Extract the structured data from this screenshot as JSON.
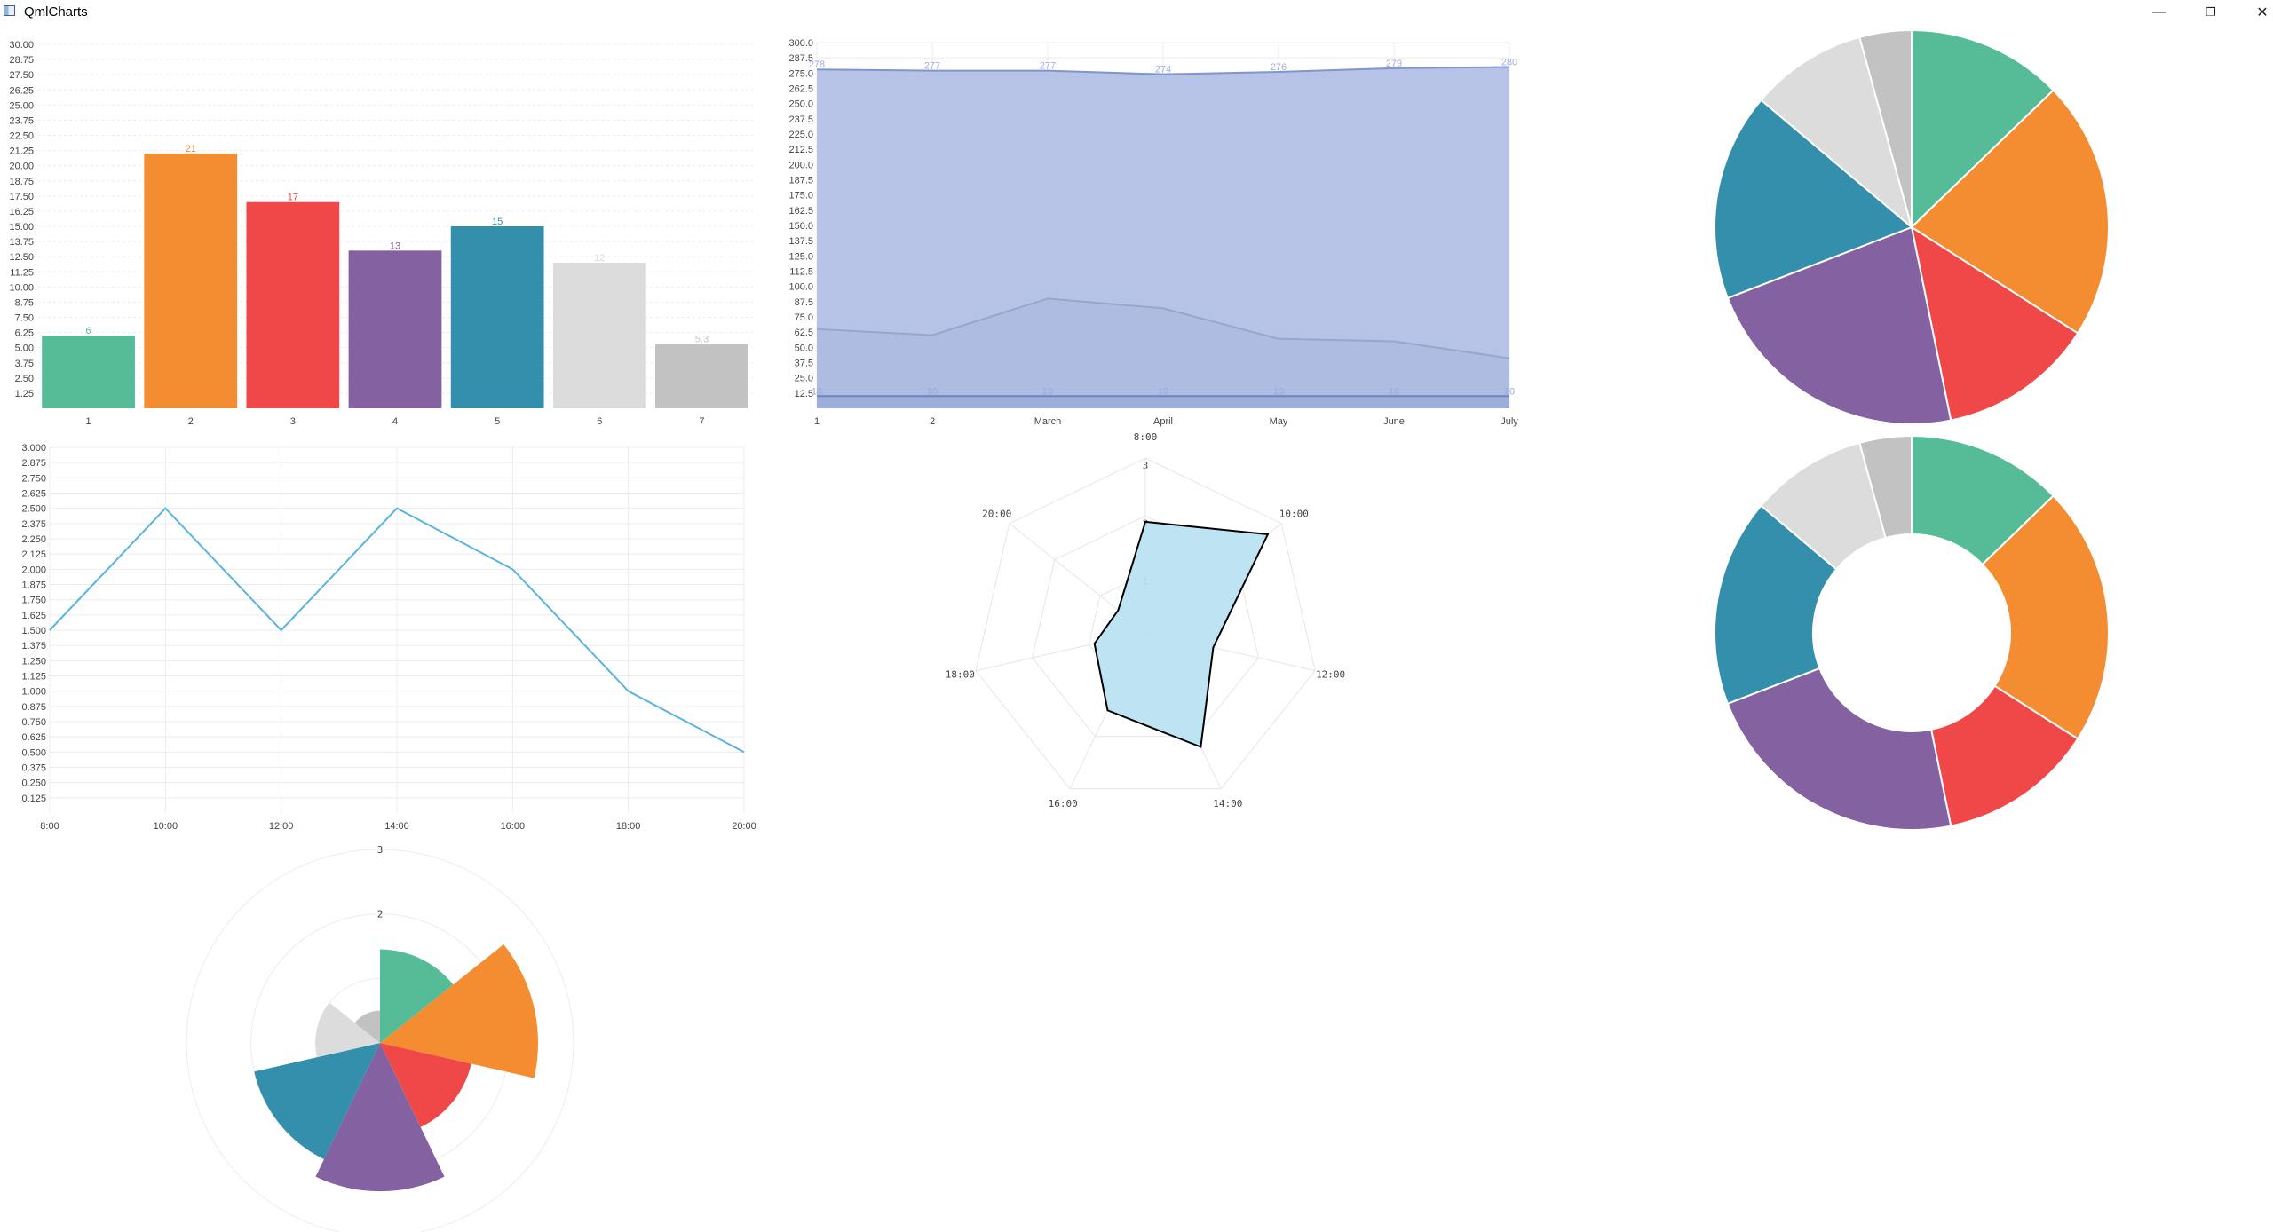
{
  "window": {
    "title": "QmlCharts",
    "minimize_icon": "minimize-icon",
    "maximize_icon": "restore-icon",
    "close_icon": "close-icon",
    "minimize_glyph": "—",
    "maximize_glyph": "❐",
    "close_glyph": "✕"
  },
  "palette": [
    "#55bc97",
    "#f48d32",
    "#f04848",
    "#8462a2",
    "#338fab",
    "#dcdcdc",
    "#c2c2c2"
  ],
  "chart_data": [
    {
      "type": "bar",
      "categories": [
        "1",
        "2",
        "3",
        "4",
        "5",
        "6",
        "7"
      ],
      "values": [
        6,
        21,
        17,
        13,
        15,
        12,
        5.3
      ],
      "data_labels": [
        "6",
        "21",
        "17",
        "13",
        "15",
        "12",
        "5.3"
      ],
      "ylim": [
        0,
        30
      ],
      "yticks": [
        "1.25",
        "2.50",
        "3.75",
        "5.00",
        "6.25",
        "7.50",
        "8.75",
        "10.00",
        "11.25",
        "12.50",
        "13.75",
        "15.00",
        "16.25",
        "17.50",
        "18.75",
        "20.00",
        "21.25",
        "22.50",
        "23.75",
        "25.00",
        "26.25",
        "27.50",
        "28.75",
        "30.00"
      ],
      "grid": true
    },
    {
      "type": "area",
      "categories": [
        "1",
        "2",
        "March",
        "April",
        "May",
        "June",
        "July"
      ],
      "series": [
        {
          "values": [
            278,
            277,
            277,
            274,
            276,
            279,
            280
          ],
          "labels": [
            "278",
            "277",
            "277",
            "274",
            "276",
            "279",
            "280"
          ],
          "color": "#b6c3e6",
          "line": "#7f95cf"
        },
        {
          "values": [
            65,
            60,
            90,
            82,
            57,
            55,
            41
          ],
          "labels": [],
          "color": "#a9b6dc",
          "line": "#98a6cf"
        },
        {
          "values": [
            10,
            10,
            10,
            10,
            10,
            10,
            10
          ],
          "labels": [
            "10",
            "10",
            "10",
            "10",
            "10",
            "10",
            "10"
          ],
          "color": "#8ea3d6",
          "line": "#6c84c4"
        }
      ],
      "ylim": [
        0,
        300
      ],
      "yticks": [
        "12.5",
        "25.0",
        "37.5",
        "50.0",
        "62.5",
        "75.0",
        "87.5",
        "100.0",
        "112.5",
        "125.0",
        "137.5",
        "150.0",
        "162.5",
        "175.0",
        "187.5",
        "200.0",
        "212.5",
        "225.0",
        "237.5",
        "250.0",
        "262.5",
        "275.0",
        "287.5",
        "300.0"
      ],
      "grid": true
    },
    {
      "type": "pie",
      "values": [
        12,
        20,
        12,
        21,
        16,
        9,
        4
      ],
      "hole": 0
    },
    {
      "type": "line",
      "categories": [
        "8:00",
        "10:00",
        "12:00",
        "14:00",
        "16:00",
        "18:00",
        "20:00"
      ],
      "values": [
        1.5,
        2.5,
        1.5,
        2.5,
        2.0,
        1.0,
        0.5
      ],
      "ylim": [
        0,
        3
      ],
      "yticks": [
        "0.125",
        "0.250",
        "0.375",
        "0.500",
        "0.625",
        "0.750",
        "0.875",
        "1.000",
        "1.125",
        "1.250",
        "1.375",
        "1.500",
        "1.625",
        "1.750",
        "1.875",
        "2.000",
        "2.125",
        "2.250",
        "2.375",
        "2.500",
        "2.625",
        "2.750",
        "2.875",
        "3.000"
      ],
      "color": "#5ab4e0",
      "grid": true
    },
    {
      "type": "radar",
      "axes": [
        "8:00",
        "10:00",
        "12:00",
        "14:00",
        "16:00",
        "18:00",
        "20:00"
      ],
      "values": [
        1.9,
        2.7,
        1.2,
        2.2,
        1.5,
        0.9,
        0.6
      ],
      "rings": [
        "1",
        "2",
        "3"
      ],
      "rmax": 3,
      "fill": "#b7e1f3",
      "stroke": "#000000"
    },
    {
      "type": "pie",
      "values": [
        12,
        20,
        12,
        21,
        16,
        9,
        4
      ],
      "hole": 0.5
    },
    {
      "type": "polar-area",
      "values": [
        1.45,
        2.45,
        1.45,
        2.3,
        2.0,
        1.0,
        0.5
      ],
      "rings": [
        "1",
        "2",
        "3"
      ],
      "rmax": 3
    }
  ]
}
